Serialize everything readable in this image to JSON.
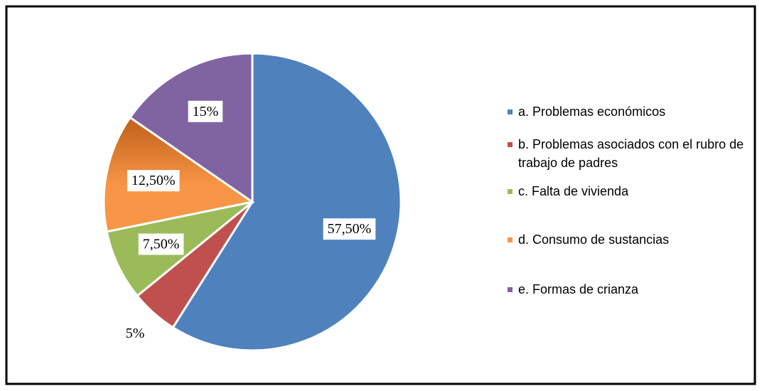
{
  "chart_data": {
    "type": "pie",
    "categories": [
      "a. Problemas económicos",
      "b. Problemas asociados con el rubro de trabajo de padres",
      "c. Falta de vivienda",
      "d. Consumo de sustancias",
      "e. Formas de crianza"
    ],
    "values": [
      57.5,
      5,
      7.5,
      12.5,
      15
    ],
    "value_labels": [
      "57,50%",
      "5%",
      "7,50%",
      "12,50%",
      "15%"
    ],
    "colors": [
      "#4f81bd",
      "#c0504d",
      "#9bbb59",
      "#f79646",
      "#8064a2"
    ],
    "legend": "right"
  }
}
